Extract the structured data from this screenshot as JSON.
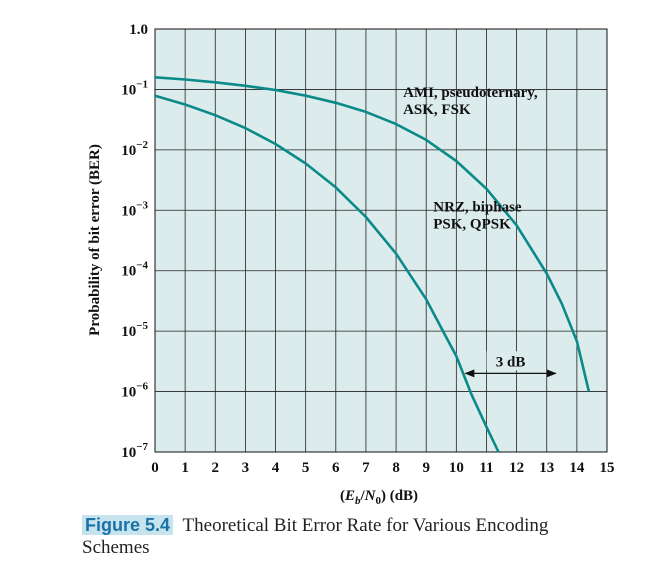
{
  "chart_data": {
    "type": "line",
    "title": "",
    "xlabel": "(E_b/N_0) (dB)",
    "xlabel_parts": {
      "open": "(",
      "E": "E",
      "b": "b",
      "slash": "/",
      "N": "N",
      "zero": "0",
      "close": ") (dB)"
    },
    "ylabel": "Probability of bit error (BER)",
    "x_ticks": [
      "0",
      "1",
      "2",
      "3",
      "4",
      "5",
      "6",
      "7",
      "8",
      "9",
      "10",
      "11",
      "12",
      "13",
      "14",
      "15"
    ],
    "xlim": [
      0,
      15
    ],
    "y_scale": "log",
    "ylim": [
      1e-07,
      1
    ],
    "y_ticks": [
      {
        "base": "1.0",
        "exp": ""
      },
      {
        "base": "10",
        "exp": "−1"
      },
      {
        "base": "10",
        "exp": "−2"
      },
      {
        "base": "10",
        "exp": "−3"
      },
      {
        "base": "10",
        "exp": "−4"
      },
      {
        "base": "10",
        "exp": "−5"
      },
      {
        "base": "10",
        "exp": "−6"
      },
      {
        "base": "10",
        "exp": "−7"
      }
    ],
    "grid": true,
    "background_color": "#dcecec",
    "line_color": "#0b8a8a",
    "series": [
      {
        "label_lines": [
          "NRZ, biphase",
          "PSK, QPSK"
        ],
        "x": [
          0,
          1,
          2,
          3,
          4,
          5,
          6,
          7,
          8,
          9,
          9.6,
          10,
          10.5,
          11,
          11.4
        ],
        "y": [
          0.0786,
          0.0563,
          0.0375,
          0.0229,
          0.0125,
          0.00595,
          0.00239,
          0.000773,
          0.000191,
          3.36e-05,
          9.1e-06,
          3.87e-06,
          9e-07,
          2.6e-07,
          1e-07
        ]
      },
      {
        "label_lines": [
          "AMI, pseudoternary,",
          "ASK, FSK"
        ],
        "x": [
          0,
          1,
          2,
          3,
          4,
          5,
          6,
          7,
          8,
          9,
          10,
          11,
          12,
          13,
          13.5,
          14,
          14.4
        ],
        "y": [
          0.159,
          0.146,
          0.131,
          0.115,
          0.0979,
          0.0786,
          0.0601,
          0.0425,
          0.0267,
          0.0146,
          0.00654,
          0.00227,
          0.000565,
          9.01e-05,
          2.84e-05,
          6.8e-06,
          1e-06
        ]
      }
    ],
    "annotations": [
      {
        "text": "3 dB",
        "x_from": 10.3,
        "x_to": 13.3,
        "y": 2e-06
      }
    ]
  },
  "caption": {
    "figure_label": "Figure 5.4",
    "text": "Theoretical Bit Error Rate for Various Encoding Schemes"
  }
}
